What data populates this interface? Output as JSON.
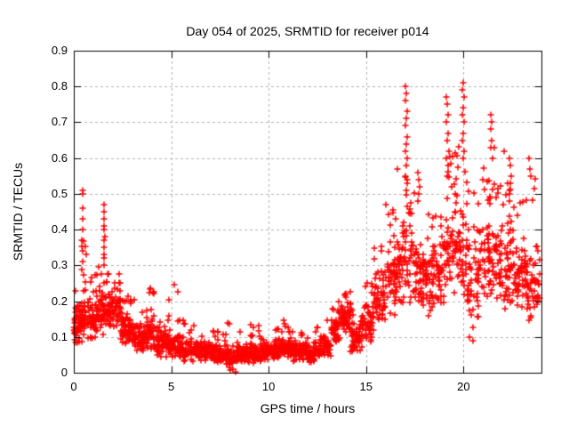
{
  "chart_data": {
    "type": "scatter",
    "title": "Day 054 of 2025, SRMTID for receiver p014",
    "xlabel": "GPS time / hours",
    "ylabel": "SRMTID / TECUs",
    "xlim": [
      0,
      24
    ],
    "ylim": [
      0,
      0.9
    ],
    "xticks": {
      "values": [
        0,
        5,
        10,
        15,
        20
      ],
      "labels": [
        "0",
        "5",
        "10",
        "15",
        "20"
      ]
    },
    "yticks": {
      "values": [
        0,
        0.1,
        0.2,
        0.3,
        0.4,
        0.5,
        0.6,
        0.7,
        0.8,
        0.9
      ],
      "labels": [
        "0",
        "0.1",
        "0.2",
        "0.3",
        "0.4",
        "0.5",
        "0.6",
        "0.7",
        "0.8",
        "0.9"
      ]
    },
    "grid": {
      "visible": true,
      "style": "dashed",
      "color": "#b0b0b0"
    },
    "legend": {
      "visible": false
    },
    "series": [
      {
        "name": "SRMTID",
        "marker": "plus",
        "color": "#ff0000",
        "representation": "binned-envelope",
        "bins_format": [
          "x_start_h",
          "x_end_h",
          "n_points",
          "band_low",
          "band_high",
          "tail_high",
          "tail_fraction"
        ],
        "bins": [
          [
            0.0,
            0.3,
            35,
            0.07,
            0.2,
            0.25,
            0.1
          ],
          [
            0.3,
            0.7,
            45,
            0.08,
            0.22,
            0.37,
            0.12
          ],
          [
            0.7,
            1.2,
            55,
            0.09,
            0.21,
            0.28,
            0.1
          ],
          [
            1.2,
            1.8,
            60,
            0.1,
            0.24,
            0.3,
            0.12
          ],
          [
            1.8,
            2.4,
            60,
            0.12,
            0.24,
            0.28,
            0.08
          ],
          [
            2.4,
            3.0,
            60,
            0.07,
            0.18,
            0.22,
            0.08
          ],
          [
            3.0,
            3.6,
            55,
            0.05,
            0.15,
            0.23,
            0.08
          ],
          [
            3.6,
            4.2,
            55,
            0.05,
            0.17,
            0.25,
            0.1
          ],
          [
            4.2,
            4.8,
            55,
            0.04,
            0.14,
            0.22,
            0.08
          ],
          [
            4.8,
            5.4,
            55,
            0.04,
            0.13,
            0.25,
            0.1
          ],
          [
            5.4,
            6.0,
            55,
            0.03,
            0.11,
            0.16,
            0.08
          ],
          [
            6.0,
            6.6,
            55,
            0.03,
            0.1,
            0.15,
            0.06
          ],
          [
            6.6,
            7.2,
            55,
            0.03,
            0.09,
            0.13,
            0.05
          ],
          [
            7.2,
            7.8,
            55,
            0.02,
            0.08,
            0.12,
            0.05
          ],
          [
            7.8,
            8.4,
            55,
            0.0,
            0.08,
            0.15,
            0.06
          ],
          [
            8.4,
            9.0,
            55,
            0.02,
            0.08,
            0.12,
            0.05
          ],
          [
            9.0,
            9.6,
            55,
            0.02,
            0.09,
            0.14,
            0.06
          ],
          [
            9.6,
            10.2,
            55,
            0.03,
            0.09,
            0.12,
            0.05
          ],
          [
            10.2,
            10.8,
            55,
            0.03,
            0.1,
            0.15,
            0.06
          ],
          [
            10.8,
            11.4,
            55,
            0.03,
            0.1,
            0.14,
            0.05
          ],
          [
            11.4,
            12.0,
            55,
            0.03,
            0.09,
            0.13,
            0.05
          ],
          [
            12.0,
            12.6,
            55,
            0.02,
            0.09,
            0.15,
            0.06
          ],
          [
            12.6,
            13.2,
            55,
            0.04,
            0.11,
            0.16,
            0.06
          ],
          [
            13.2,
            13.7,
            45,
            0.07,
            0.16,
            0.2,
            0.1
          ],
          [
            13.7,
            14.2,
            50,
            0.1,
            0.21,
            0.23,
            0.1
          ],
          [
            14.2,
            14.8,
            50,
            0.05,
            0.15,
            0.18,
            0.08
          ],
          [
            14.8,
            15.4,
            50,
            0.08,
            0.2,
            0.26,
            0.1
          ],
          [
            15.4,
            16.0,
            50,
            0.12,
            0.3,
            0.36,
            0.12
          ],
          [
            16.0,
            16.6,
            50,
            0.15,
            0.38,
            0.46,
            0.12
          ],
          [
            16.6,
            17.2,
            50,
            0.18,
            0.45,
            0.58,
            0.14
          ],
          [
            17.2,
            17.8,
            50,
            0.18,
            0.42,
            0.52,
            0.12
          ],
          [
            17.8,
            18.4,
            50,
            0.15,
            0.35,
            0.45,
            0.1
          ],
          [
            18.4,
            19.0,
            50,
            0.18,
            0.4,
            0.5,
            0.12
          ],
          [
            19.0,
            19.6,
            50,
            0.2,
            0.48,
            0.62,
            0.14
          ],
          [
            19.6,
            20.2,
            50,
            0.18,
            0.5,
            0.66,
            0.14
          ],
          [
            20.2,
            20.8,
            50,
            0.09,
            0.38,
            0.52,
            0.12
          ],
          [
            20.8,
            21.4,
            50,
            0.18,
            0.45,
            0.58,
            0.12
          ],
          [
            21.4,
            22.0,
            50,
            0.15,
            0.42,
            0.55,
            0.12
          ],
          [
            22.0,
            22.6,
            50,
            0.15,
            0.4,
            0.54,
            0.12
          ],
          [
            22.6,
            23.2,
            50,
            0.15,
            0.38,
            0.5,
            0.1
          ],
          [
            23.2,
            23.9,
            55,
            0.14,
            0.35,
            0.58,
            0.1
          ]
        ],
        "peak_points": [
          [
            0.45,
            0.51
          ],
          [
            0.47,
            0.5
          ],
          [
            0.44,
            0.46
          ],
          [
            0.46,
            0.43
          ],
          [
            0.45,
            0.4
          ],
          [
            0.43,
            0.37
          ],
          [
            0.46,
            0.34
          ],
          [
            0.44,
            0.31
          ],
          [
            1.55,
            0.47
          ],
          [
            1.57,
            0.45
          ],
          [
            1.54,
            0.43
          ],
          [
            1.56,
            0.41
          ],
          [
            1.55,
            0.4
          ],
          [
            1.58,
            0.38
          ],
          [
            1.53,
            0.37
          ],
          [
            1.56,
            0.35
          ],
          [
            1.55,
            0.33
          ],
          [
            1.57,
            0.32
          ],
          [
            1.54,
            0.3
          ],
          [
            16.0,
            0.47
          ],
          [
            17.0,
            0.8
          ],
          [
            17.05,
            0.78
          ],
          [
            17.0,
            0.76
          ],
          [
            17.1,
            0.73
          ],
          [
            17.05,
            0.71
          ],
          [
            17.0,
            0.69
          ],
          [
            17.1,
            0.66
          ],
          [
            17.05,
            0.64
          ],
          [
            17.0,
            0.62
          ],
          [
            17.1,
            0.6
          ],
          [
            17.05,
            0.58
          ],
          [
            17.0,
            0.55
          ],
          [
            17.1,
            0.53
          ],
          [
            17.05,
            0.51
          ],
          [
            17.65,
            0.56
          ],
          [
            17.7,
            0.54
          ],
          [
            17.75,
            0.52
          ],
          [
            17.7,
            0.5
          ],
          [
            17.65,
            0.48
          ],
          [
            19.1,
            0.77
          ],
          [
            19.15,
            0.75
          ],
          [
            19.2,
            0.72
          ],
          [
            19.1,
            0.7
          ],
          [
            19.2,
            0.67
          ],
          [
            19.15,
            0.65
          ],
          [
            19.25,
            0.62
          ],
          [
            19.1,
            0.6
          ],
          [
            19.2,
            0.58
          ],
          [
            19.15,
            0.55
          ],
          [
            20.0,
            0.81
          ],
          [
            19.95,
            0.79
          ],
          [
            20.05,
            0.77
          ],
          [
            20.0,
            0.74
          ],
          [
            19.95,
            0.72
          ],
          [
            20.05,
            0.7
          ],
          [
            20.0,
            0.67
          ],
          [
            19.95,
            0.65
          ],
          [
            20.05,
            0.62
          ],
          [
            20.0,
            0.6
          ],
          [
            20.3,
            0.1
          ],
          [
            20.5,
            0.09
          ],
          [
            21.4,
            0.72
          ],
          [
            21.45,
            0.7
          ],
          [
            21.4,
            0.68
          ],
          [
            21.45,
            0.65
          ],
          [
            21.4,
            0.63
          ],
          [
            21.5,
            0.6
          ],
          [
            21.6,
            0.63
          ],
          [
            22.1,
            0.62
          ],
          [
            22.35,
            0.6
          ],
          [
            22.4,
            0.58
          ],
          [
            22.45,
            0.55
          ],
          [
            22.4,
            0.53
          ],
          [
            22.35,
            0.5
          ],
          [
            23.35,
            0.6
          ],
          [
            23.4,
            0.57
          ],
          [
            23.45,
            0.55
          ]
        ]
      }
    ],
    "axis_color": "#000000",
    "background": "#ffffff"
  }
}
